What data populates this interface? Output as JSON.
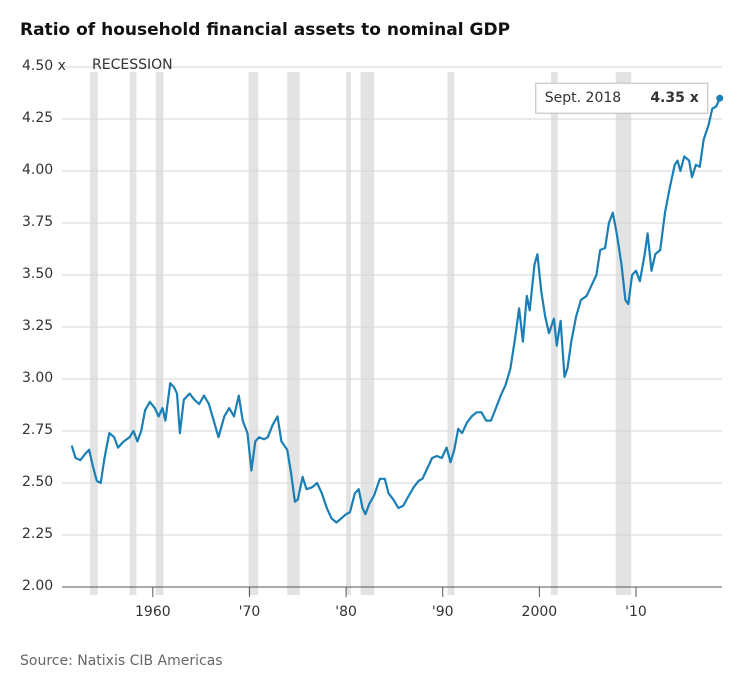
{
  "chart_data": {
    "type": "line",
    "title": "Ratio of household financial assets to nominal GDP",
    "source": "Source: Natixis CIB Americas",
    "recession_label": "RECESSION",
    "recessions": [
      [
        1953.5,
        1954.3
      ],
      [
        1957.6,
        1958.3
      ],
      [
        1960.3,
        1961.1
      ],
      [
        1969.9,
        1970.9
      ],
      [
        1973.9,
        1975.2
      ],
      [
        1980.0,
        1980.5
      ],
      [
        1981.5,
        1982.9
      ],
      [
        1990.5,
        1991.2
      ],
      [
        2001.2,
        2001.9
      ],
      [
        2007.9,
        2009.5
      ]
    ],
    "color": "#1a7fb5",
    "xlim": [
      1950.6,
      2018.9
    ],
    "ylim": [
      2.0,
      4.5
    ],
    "xticks": [
      1960,
      {
        "value": 1970,
        "label": "'70"
      },
      {
        "value": 1980,
        "label": "'80"
      },
      {
        "value": 1990,
        "label": "'90"
      },
      2000,
      {
        "value": 2010,
        "label": "'10"
      }
    ],
    "yticks": [
      {
        "value": 2.0,
        "label": "2.00"
      },
      2.25,
      {
        "value": 2.5,
        "label": "2.50"
      },
      2.75,
      {
        "value": 3.0,
        "label": "3.00"
      },
      3.25,
      {
        "value": 3.5,
        "label": "3.50"
      },
      3.75,
      {
        "value": 4.0,
        "label": "4.00"
      },
      4.25,
      {
        "value": 4.5,
        "label": "4.50 x"
      }
    ],
    "grid": true,
    "annotation": {
      "date_label": "Sept. 2018",
      "value_label": "4.35 x"
    },
    "x": [
      1951.6,
      1952.0,
      1952.5,
      1953.0,
      1953.4,
      1953.8,
      1954.2,
      1954.6,
      1955.0,
      1955.5,
      1956.0,
      1956.4,
      1957.0,
      1957.6,
      1958.0,
      1958.4,
      1958.8,
      1959.2,
      1959.7,
      1960.2,
      1960.6,
      1961.0,
      1961.3,
      1961.8,
      1962.2,
      1962.5,
      1962.8,
      1963.2,
      1963.8,
      1964.3,
      1964.8,
      1965.3,
      1965.8,
      1966.3,
      1966.8,
      1967.4,
      1967.9,
      1968.4,
      1968.9,
      1969.3,
      1969.8,
      1970.2,
      1970.6,
      1971.0,
      1971.5,
      1971.9,
      1972.4,
      1972.9,
      1973.3,
      1973.9,
      1974.3,
      1974.7,
      1975.0,
      1975.5,
      1975.9,
      1976.5,
      1977.0,
      1977.5,
      1978.0,
      1978.5,
      1979.0,
      1979.5,
      1980.0,
      1980.4,
      1980.9,
      1981.3,
      1981.7,
      1982.0,
      1982.4,
      1982.9,
      1983.5,
      1984.0,
      1984.4,
      1984.9,
      1985.4,
      1985.9,
      1986.5,
      1987.0,
      1987.5,
      1987.9,
      1988.4,
      1988.9,
      1989.4,
      1989.9,
      1990.4,
      1990.8,
      1991.2,
      1991.6,
      1992.0,
      1992.5,
      1993.0,
      1993.5,
      1994.0,
      1994.5,
      1995.0,
      1995.5,
      1996.0,
      1996.5,
      1997.0,
      1997.5,
      1997.9,
      1998.3,
      1998.7,
      1999.0,
      1999.5,
      1999.8,
      2000.2,
      2000.6,
      2001.0,
      2001.5,
      2001.8,
      2002.2,
      2002.6,
      2002.9,
      2003.3,
      2003.8,
      2004.3,
      2004.9,
      2005.4,
      2005.9,
      2006.3,
      2006.8,
      2007.2,
      2007.6,
      2008.0,
      2008.5,
      2008.9,
      2009.2,
      2009.6,
      2010.0,
      2010.4,
      2010.9,
      2011.2,
      2011.6,
      2012.0,
      2012.5,
      2013.0,
      2013.5,
      2014.0,
      2014.3,
      2014.6,
      2015.0,
      2015.5,
      2015.8,
      2016.2,
      2016.6,
      2017.0,
      2017.5,
      2017.9,
      2018.3,
      2018.67
    ],
    "values": [
      2.68,
      2.62,
      2.61,
      2.64,
      2.66,
      2.58,
      2.51,
      2.5,
      2.62,
      2.74,
      2.72,
      2.67,
      2.7,
      2.72,
      2.75,
      2.7,
      2.75,
      2.85,
      2.89,
      2.86,
      2.82,
      2.86,
      2.8,
      2.98,
      2.96,
      2.93,
      2.74,
      2.9,
      2.93,
      2.9,
      2.88,
      2.92,
      2.88,
      2.8,
      2.72,
      2.82,
      2.86,
      2.82,
      2.92,
      2.8,
      2.74,
      2.56,
      2.7,
      2.72,
      2.71,
      2.72,
      2.78,
      2.82,
      2.7,
      2.66,
      2.55,
      2.41,
      2.42,
      2.53,
      2.47,
      2.48,
      2.5,
      2.45,
      2.38,
      2.33,
      2.31,
      2.33,
      2.35,
      2.36,
      2.45,
      2.47,
      2.38,
      2.35,
      2.4,
      2.44,
      2.52,
      2.52,
      2.45,
      2.42,
      2.38,
      2.39,
      2.44,
      2.48,
      2.51,
      2.52,
      2.57,
      2.62,
      2.63,
      2.62,
      2.67,
      2.6,
      2.66,
      2.76,
      2.74,
      2.79,
      2.82,
      2.84,
      2.84,
      2.8,
      2.8,
      2.86,
      2.92,
      2.97,
      3.05,
      3.2,
      3.34,
      3.18,
      3.4,
      3.33,
      3.55,
      3.6,
      3.42,
      3.3,
      3.22,
      3.29,
      3.16,
      3.28,
      3.01,
      3.05,
      3.18,
      3.3,
      3.38,
      3.4,
      3.45,
      3.5,
      3.62,
      3.63,
      3.75,
      3.8,
      3.7,
      3.55,
      3.38,
      3.36,
      3.5,
      3.52,
      3.47,
      3.6,
      3.7,
      3.52,
      3.6,
      3.62,
      3.8,
      3.92,
      4.03,
      4.05,
      4.0,
      4.07,
      4.05,
      3.97,
      4.03,
      4.02,
      4.15,
      4.22,
      4.3,
      4.31,
      4.35
    ]
  }
}
